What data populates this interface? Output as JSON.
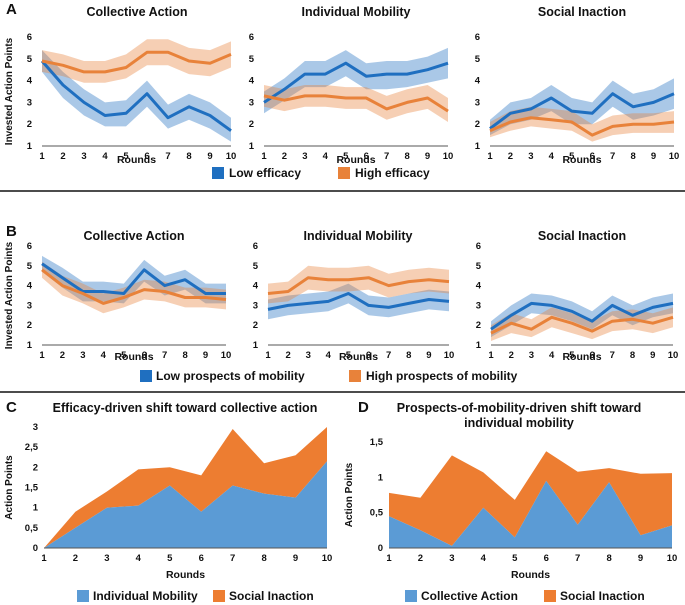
{
  "colors": {
    "blue": "#1f6fc0",
    "orange": "#e8823a",
    "blue_area": "#5b9bd5",
    "orange_area": "#ed7d31"
  },
  "panels": [
    {
      "letter": "A"
    },
    {
      "letter": "B"
    },
    {
      "letter": "C"
    },
    {
      "letter": "D"
    }
  ],
  "legend_a": {
    "low": "Low efficacy",
    "high": "High efficacy"
  },
  "legend_b": {
    "low": "Low prospects of mobility",
    "high": "High prospects of mobility"
  },
  "legend_c": {
    "s1": "Individual Mobility",
    "s2": "Social Inaction"
  },
  "legend_d": {
    "s1": "Collective Action",
    "s2": "Social Inaction"
  },
  "chart_data": [
    {
      "type": "line",
      "panel": "A",
      "title": "Collective Action",
      "xlabel": "Rounds",
      "ylabel": "Invested Action Points",
      "x": [
        1,
        2,
        3,
        4,
        5,
        6,
        7,
        8,
        9,
        10
      ],
      "ylim": [
        1,
        6
      ],
      "series": [
        {
          "name": "Low efficacy",
          "values": [
            4.9,
            3.8,
            3.0,
            2.4,
            2.5,
            3.4,
            2.3,
            2.8,
            2.4,
            1.7
          ],
          "lower": [
            4.4,
            3.2,
            2.4,
            1.9,
            1.9,
            2.8,
            1.8,
            2.2,
            1.8,
            1.2
          ],
          "upper": [
            5.4,
            4.4,
            3.6,
            3.0,
            3.1,
            4.0,
            2.9,
            3.4,
            3.0,
            2.3
          ]
        },
        {
          "name": "High efficacy",
          "values": [
            4.9,
            4.7,
            4.4,
            4.4,
            4.6,
            5.3,
            5.3,
            4.9,
            4.8,
            5.2
          ],
          "lower": [
            4.4,
            4.2,
            3.9,
            3.9,
            4.1,
            4.7,
            4.7,
            4.3,
            4.2,
            4.6
          ],
          "upper": [
            5.4,
            5.2,
            4.9,
            4.9,
            5.2,
            5.9,
            5.9,
            5.5,
            5.4,
            5.8
          ]
        }
      ]
    },
    {
      "type": "line",
      "panel": "A",
      "title": "Individual Mobility",
      "xlabel": "Rounds",
      "ylabel": "",
      "x": [
        1,
        2,
        3,
        4,
        5,
        6,
        7,
        8,
        9,
        10
      ],
      "ylim": [
        1,
        6
      ],
      "series": [
        {
          "name": "Low efficacy",
          "values": [
            3.0,
            3.6,
            4.3,
            4.3,
            4.8,
            4.2,
            4.3,
            4.3,
            4.5,
            4.8
          ],
          "lower": [
            2.5,
            3.1,
            3.7,
            3.7,
            4.2,
            3.6,
            3.6,
            3.7,
            3.9,
            4.1
          ],
          "upper": [
            3.5,
            4.1,
            4.9,
            4.9,
            5.4,
            4.8,
            4.9,
            4.9,
            5.1,
            5.5
          ]
        },
        {
          "name": "High efficacy",
          "values": [
            3.3,
            3.1,
            3.3,
            3.3,
            3.2,
            3.2,
            2.7,
            3.0,
            3.2,
            2.6
          ],
          "lower": [
            2.8,
            2.6,
            2.8,
            2.8,
            2.7,
            2.7,
            2.2,
            2.5,
            2.7,
            2.1
          ],
          "upper": [
            3.8,
            3.6,
            3.8,
            3.8,
            3.7,
            3.7,
            3.3,
            3.6,
            3.8,
            3.2
          ]
        }
      ]
    },
    {
      "type": "line",
      "panel": "A",
      "title": "Social Inaction",
      "xlabel": "Rounds",
      "ylabel": "",
      "x": [
        1,
        2,
        3,
        4,
        5,
        6,
        7,
        8,
        9,
        10
      ],
      "ylim": [
        1,
        6
      ],
      "series": [
        {
          "name": "Low efficacy",
          "values": [
            1.8,
            2.5,
            2.7,
            3.2,
            2.6,
            2.5,
            3.4,
            2.8,
            3.0,
            3.4
          ],
          "lower": [
            1.5,
            2.0,
            2.2,
            2.6,
            2.0,
            2.0,
            2.8,
            2.2,
            2.4,
            2.7
          ],
          "upper": [
            2.2,
            3.0,
            3.2,
            3.8,
            3.2,
            3.0,
            4.0,
            3.4,
            3.6,
            4.1
          ]
        },
        {
          "name": "High efficacy",
          "values": [
            1.7,
            2.1,
            2.3,
            2.2,
            2.1,
            1.5,
            1.9,
            2.0,
            2.0,
            2.1
          ],
          "lower": [
            1.4,
            1.7,
            1.9,
            1.8,
            1.7,
            1.2,
            1.5,
            1.6,
            1.6,
            1.6
          ],
          "upper": [
            2.1,
            2.6,
            2.8,
            2.7,
            2.6,
            2.0,
            2.4,
            2.5,
            2.5,
            2.6
          ]
        }
      ]
    },
    {
      "type": "line",
      "panel": "B",
      "title": "Collective Action",
      "xlabel": "Rounds",
      "ylabel": "Invested Action Points",
      "x": [
        1,
        2,
        3,
        4,
        5,
        6,
        7,
        8,
        9,
        10
      ],
      "ylim": [
        1,
        6
      ],
      "series": [
        {
          "name": "Low prospects of mobility",
          "values": [
            5.1,
            4.4,
            3.7,
            3.7,
            3.6,
            4.8,
            4.0,
            4.3,
            3.6,
            3.6
          ],
          "lower": [
            4.7,
            3.9,
            3.2,
            3.2,
            3.1,
            4.2,
            3.5,
            3.8,
            3.1,
            3.1
          ],
          "upper": [
            5.5,
            4.9,
            4.2,
            4.2,
            4.1,
            5.3,
            4.5,
            4.8,
            4.1,
            4.1
          ]
        },
        {
          "name": "High prospects of mobility",
          "values": [
            4.8,
            4.0,
            3.6,
            3.1,
            3.4,
            3.8,
            3.7,
            3.4,
            3.4,
            3.3
          ],
          "lower": [
            4.4,
            3.5,
            3.1,
            2.6,
            2.9,
            3.3,
            3.2,
            2.9,
            2.9,
            2.8
          ],
          "upper": [
            5.2,
            4.5,
            4.1,
            3.6,
            3.9,
            4.3,
            4.2,
            3.9,
            3.9,
            3.8
          ]
        }
      ]
    },
    {
      "type": "line",
      "panel": "B",
      "title": "Individual Mobility",
      "xlabel": "Rounds",
      "ylabel": "",
      "x": [
        1,
        2,
        3,
        4,
        5,
        6,
        7,
        8,
        9,
        10
      ],
      "ylim": [
        1,
        6
      ],
      "series": [
        {
          "name": "Low prospects of mobility",
          "values": [
            2.8,
            3.0,
            3.1,
            3.2,
            3.6,
            3.0,
            2.9,
            3.1,
            3.3,
            3.2
          ],
          "lower": [
            2.3,
            2.5,
            2.6,
            2.7,
            3.1,
            2.5,
            2.4,
            2.6,
            2.8,
            2.7
          ],
          "upper": [
            3.3,
            3.5,
            3.6,
            3.7,
            4.1,
            3.5,
            3.4,
            3.6,
            3.8,
            3.7
          ]
        },
        {
          "name": "High prospects of mobility",
          "values": [
            3.6,
            3.7,
            4.4,
            4.3,
            4.3,
            4.4,
            4.0,
            4.2,
            4.3,
            4.2
          ],
          "lower": [
            3.1,
            3.2,
            3.8,
            3.7,
            3.7,
            3.8,
            3.4,
            3.6,
            3.7,
            3.6
          ],
          "upper": [
            4.1,
            4.2,
            5.0,
            4.9,
            4.9,
            5.0,
            4.6,
            4.8,
            4.9,
            4.8
          ]
        }
      ]
    },
    {
      "type": "line",
      "panel": "B",
      "title": "Social Inaction",
      "xlabel": "Rounds",
      "ylabel": "",
      "x": [
        1,
        2,
        3,
        4,
        5,
        6,
        7,
        8,
        9,
        10
      ],
      "ylim": [
        1,
        6
      ],
      "series": [
        {
          "name": "Low prospects of mobility",
          "values": [
            1.8,
            2.5,
            3.1,
            3.0,
            2.7,
            2.2,
            3.0,
            2.5,
            2.9,
            3.1
          ],
          "lower": [
            1.4,
            2.0,
            2.6,
            2.5,
            2.2,
            1.8,
            2.5,
            2.0,
            2.4,
            2.6
          ],
          "upper": [
            2.2,
            3.0,
            3.6,
            3.5,
            3.2,
            2.7,
            3.5,
            3.0,
            3.4,
            3.6
          ]
        },
        {
          "name": "High prospects of mobility",
          "values": [
            1.6,
            2.1,
            1.8,
            2.4,
            2.1,
            1.7,
            2.2,
            2.3,
            2.1,
            2.4
          ],
          "lower": [
            1.2,
            1.6,
            1.4,
            1.9,
            1.6,
            1.3,
            1.7,
            1.8,
            1.6,
            1.9
          ],
          "upper": [
            2.0,
            2.6,
            2.3,
            2.9,
            2.6,
            2.2,
            2.7,
            2.8,
            2.6,
            2.9
          ]
        }
      ]
    },
    {
      "type": "area",
      "panel": "C",
      "stacked": true,
      "title": "Efficacy-driven shift toward collective action",
      "xlabel": "Rounds",
      "ylabel": "Action Points",
      "x": [
        1,
        2,
        3,
        4,
        5,
        6,
        7,
        8,
        9,
        10
      ],
      "ylim": [
        0,
        3
      ],
      "yticks": [
        "0",
        "0,5",
        "1",
        "1,5",
        "2",
        "2,5",
        "3"
      ],
      "series": [
        {
          "name": "Individual Mobility",
          "values": [
            0.0,
            0.5,
            1.0,
            1.05,
            1.55,
            0.9,
            1.55,
            1.35,
            1.25,
            2.15
          ]
        },
        {
          "name": "Social Inaction",
          "values": [
            0.0,
            0.4,
            0.4,
            0.9,
            0.45,
            0.9,
            1.4,
            0.75,
            1.05,
            0.85
          ]
        }
      ]
    },
    {
      "type": "area",
      "panel": "D",
      "stacked": true,
      "title": "Prospects-of-mobility-driven shift toward individual mobility",
      "title_lines": [
        "Prospects-of-mobility-driven shift toward",
        "individual mobility"
      ],
      "xlabel": "Rounds",
      "ylabel": "Action Points",
      "x": [
        1,
        2,
        3,
        4,
        5,
        6,
        7,
        8,
        9,
        10
      ],
      "ylim": [
        0,
        1.5
      ],
      "yticks": [
        "0",
        "0,5",
        "1",
        "1,5"
      ],
      "series": [
        {
          "name": "Collective Action",
          "values": [
            0.45,
            0.25,
            0.03,
            0.57,
            0.15,
            0.95,
            0.33,
            0.93,
            0.18,
            0.32
          ]
        },
        {
          "name": "Social Inaction",
          "values": [
            0.33,
            0.46,
            1.28,
            0.5,
            0.53,
            0.42,
            0.75,
            0.2,
            0.87,
            0.74
          ]
        }
      ]
    }
  ]
}
